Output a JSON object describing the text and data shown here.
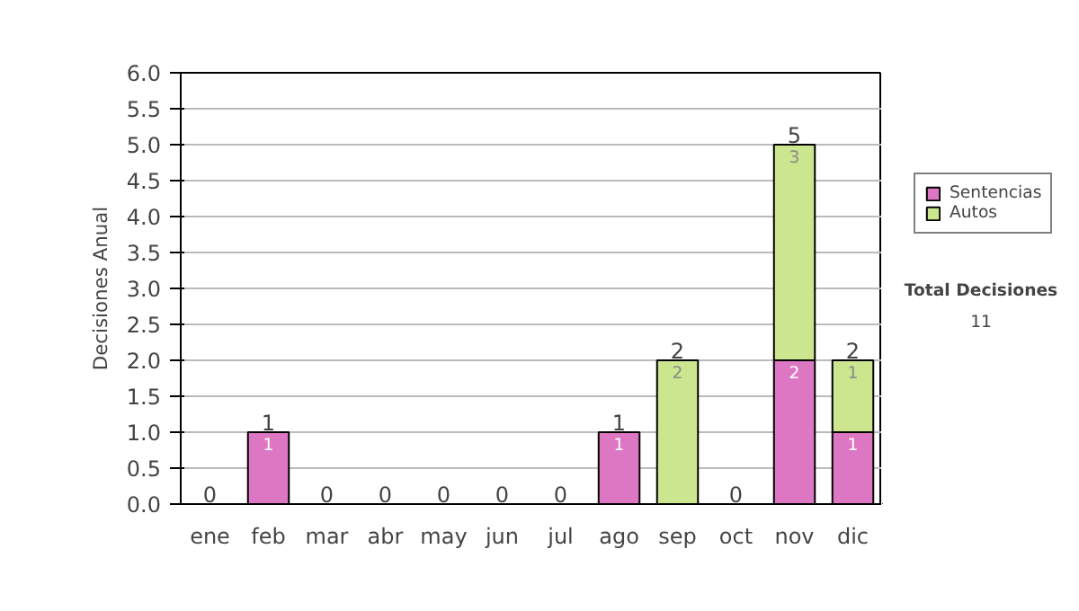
{
  "chart_data": {
    "type": "bar",
    "stacked": true,
    "ylabel": "Decisiones Anual",
    "categories": [
      "ene",
      "feb",
      "mar",
      "abr",
      "may",
      "jun",
      "jul",
      "ago",
      "sep",
      "oct",
      "nov",
      "dic"
    ],
    "series": [
      {
        "name": "Sentencias",
        "color": "#dd77c4",
        "values": [
          0,
          1,
          0,
          0,
          0,
          0,
          0,
          1,
          0,
          0,
          2,
          1
        ],
        "value_labels": [
          null,
          "1",
          null,
          null,
          null,
          null,
          null,
          "1",
          null,
          null,
          "2",
          "1"
        ]
      },
      {
        "name": "Autos",
        "color": "#cce690",
        "values": [
          0,
          0,
          0,
          0,
          0,
          0,
          0,
          0,
          2,
          0,
          3,
          1
        ],
        "value_labels": [
          null,
          null,
          null,
          null,
          null,
          null,
          null,
          null,
          "2",
          null,
          "3",
          "1"
        ]
      }
    ],
    "totals": [
      "0",
      "1",
      "0",
      "0",
      "0",
      "0",
      "0",
      "1",
      "2",
      "0",
      "5",
      "2"
    ],
    "ylim": [
      0,
      6
    ],
    "yticks": [
      {
        "value": 0,
        "label": "0.0"
      },
      {
        "value": 0.5,
        "label": "0.5"
      },
      {
        "value": 1,
        "label": "1.0"
      },
      {
        "value": 1.5,
        "label": "1.5"
      },
      {
        "value": 2,
        "label": "2.0"
      },
      {
        "value": 2.5,
        "label": "2.5"
      },
      {
        "value": 3,
        "label": "3.0"
      },
      {
        "value": 3.5,
        "label": "3.5"
      },
      {
        "value": 4,
        "label": "4.0"
      },
      {
        "value": 4.5,
        "label": "4.5"
      },
      {
        "value": 5,
        "label": "5.0"
      },
      {
        "value": 5.5,
        "label": "5.5"
      },
      {
        "value": 6,
        "label": "6.0"
      }
    ],
    "grid": "y",
    "legend": "right",
    "annotations": [
      "Total Decisiones",
      "11"
    ]
  }
}
